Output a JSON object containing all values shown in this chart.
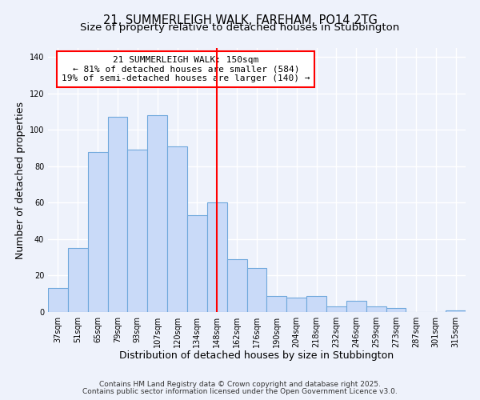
{
  "title": "21, SUMMERLEIGH WALK, FAREHAM, PO14 2TG",
  "subtitle": "Size of property relative to detached houses in Stubbington",
  "xlabel": "Distribution of detached houses by size in Stubbington",
  "ylabel": "Number of detached properties",
  "categories": [
    "37sqm",
    "51sqm",
    "65sqm",
    "79sqm",
    "93sqm",
    "107sqm",
    "120sqm",
    "134sqm",
    "148sqm",
    "162sqm",
    "176sqm",
    "190sqm",
    "204sqm",
    "218sqm",
    "232sqm",
    "246sqm",
    "259sqm",
    "273sqm",
    "287sqm",
    "301sqm",
    "315sqm"
  ],
  "values": [
    13,
    35,
    88,
    107,
    89,
    108,
    91,
    53,
    60,
    29,
    24,
    9,
    8,
    9,
    3,
    6,
    3,
    2,
    0,
    0,
    1
  ],
  "bar_color": "#c9daf8",
  "bar_edge_color": "#6fa8dc",
  "vline_index": 8,
  "vline_color": "red",
  "annotation_line1": "21 SUMMERLEIGH WALK: 150sqm",
  "annotation_line2": "← 81% of detached houses are smaller (584)",
  "annotation_line3": "19% of semi-detached houses are larger (140) →",
  "ylim": [
    0,
    145
  ],
  "yticks": [
    0,
    20,
    40,
    60,
    80,
    100,
    120,
    140
  ],
  "background_color": "#eef2fb",
  "grid_color": "#ffffff",
  "footer_line1": "Contains HM Land Registry data © Crown copyright and database right 2025.",
  "footer_line2": "Contains public sector information licensed under the Open Government Licence v3.0.",
  "title_fontsize": 10.5,
  "subtitle_fontsize": 9.5,
  "axis_label_fontsize": 9,
  "tick_fontsize": 7,
  "annotation_fontsize": 8,
  "footer_fontsize": 6.5
}
